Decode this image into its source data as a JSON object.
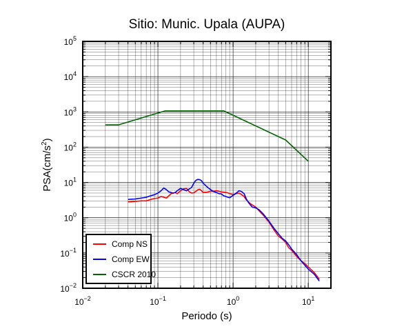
{
  "chart_data": {
    "type": "line",
    "title": "Sitio: Munic. Upala (AUPA)",
    "xlabel": "Periodo (s)",
    "ylabel": {
      "base": "PSA(cm/s",
      "sup": "2",
      "end": ")"
    },
    "x_scale": "log",
    "y_scale": "log",
    "xlim": [
      0.01,
      20
    ],
    "ylim": [
      0.01,
      100000
    ],
    "grid": true,
    "legend_position": "bottom-left",
    "x_ticks": [
      {
        "value": 0.01,
        "base": "10",
        "exp": "−2"
      },
      {
        "value": 0.1,
        "base": "10",
        "exp": "−1"
      },
      {
        "value": 1,
        "base": "10",
        "exp": "0"
      },
      {
        "value": 10,
        "base": "10",
        "exp": "1"
      }
    ],
    "y_ticks": [
      {
        "value": 0.01,
        "base": "10",
        "exp": "−2"
      },
      {
        "value": 0.1,
        "base": "10",
        "exp": "−1"
      },
      {
        "value": 1,
        "base": "10",
        "exp": "0"
      },
      {
        "value": 10,
        "base": "10",
        "exp": "1"
      },
      {
        "value": 100,
        "base": "10",
        "exp": "2"
      },
      {
        "value": 1000,
        "base": "10",
        "exp": "3"
      },
      {
        "value": 10000,
        "base": "10",
        "exp": "4"
      },
      {
        "value": 100000,
        "base": "10",
        "exp": "5"
      }
    ],
    "series": [
      {
        "name": "Comp NS",
        "color": "#ff0000",
        "x": [
          0.04,
          0.05,
          0.06,
          0.07,
          0.08,
          0.09,
          0.1,
          0.11,
          0.12,
          0.13,
          0.14,
          0.15,
          0.16,
          0.17,
          0.18,
          0.2,
          0.22,
          0.24,
          0.26,
          0.28,
          0.3,
          0.32,
          0.34,
          0.36,
          0.38,
          0.4,
          0.45,
          0.5,
          0.55,
          0.6,
          0.65,
          0.7,
          0.75,
          0.8,
          0.85,
          0.9,
          0.95,
          1.0,
          1.1,
          1.2,
          1.3,
          1.4,
          1.5,
          1.6,
          1.7,
          1.8,
          2.0,
          2.2,
          2.5,
          3.0,
          3.5,
          4.0,
          4.5,
          5.0,
          5.5,
          6.0,
          7.0,
          8.0,
          9.0,
          10.0,
          12.0,
          14.0
        ],
        "y": [
          2.8,
          2.9,
          3.0,
          3.0,
          3.3,
          3.5,
          3.6,
          4.0,
          3.8,
          3.6,
          4.2,
          4.8,
          5.0,
          5.2,
          4.8,
          5.8,
          6.6,
          6.8,
          5.5,
          5.0,
          5.1,
          5.6,
          6.2,
          6.4,
          5.8,
          5.2,
          5.3,
          5.6,
          5.6,
          5.8,
          5.6,
          5.4,
          5.3,
          5.2,
          5.1,
          4.8,
          4.7,
          4.5,
          4.8,
          5.0,
          4.5,
          4.0,
          3.2,
          2.8,
          2.5,
          2.3,
          2.0,
          1.6,
          1.2,
          0.75,
          0.45,
          0.3,
          0.25,
          0.2,
          0.14,
          0.12,
          0.08,
          0.06,
          0.05,
          0.04,
          0.028,
          0.018
        ]
      },
      {
        "name": "Comp EW",
        "color": "#0000ff",
        "x": [
          0.04,
          0.05,
          0.06,
          0.07,
          0.08,
          0.09,
          0.1,
          0.11,
          0.12,
          0.13,
          0.14,
          0.15,
          0.16,
          0.17,
          0.18,
          0.2,
          0.22,
          0.24,
          0.26,
          0.28,
          0.3,
          0.32,
          0.34,
          0.36,
          0.38,
          0.4,
          0.45,
          0.5,
          0.55,
          0.6,
          0.65,
          0.7,
          0.75,
          0.8,
          0.85,
          0.9,
          0.95,
          1.0,
          1.1,
          1.2,
          1.3,
          1.4,
          1.5,
          1.6,
          1.7,
          1.8,
          2.0,
          2.2,
          2.5,
          3.0,
          3.5,
          4.0,
          4.5,
          5.0,
          5.5,
          6.0,
          7.0,
          8.0,
          9.0,
          10.0,
          12.0,
          14.0
        ],
        "y": [
          3.3,
          3.4,
          3.6,
          3.8,
          4.2,
          4.5,
          5.0,
          5.8,
          7.0,
          6.2,
          5.4,
          5.2,
          5.0,
          5.2,
          5.8,
          6.8,
          6.2,
          5.8,
          6.5,
          7.2,
          9.5,
          11.5,
          12.2,
          12.0,
          11.2,
          9.5,
          7.5,
          6.3,
          5.5,
          5.2,
          4.8,
          4.7,
          4.2,
          4.0,
          3.8,
          3.7,
          4.0,
          4.3,
          5.0,
          5.8,
          5.5,
          4.8,
          3.4,
          2.7,
          2.3,
          2.0,
          1.9,
          1.7,
          1.3,
          0.8,
          0.5,
          0.35,
          0.26,
          0.22,
          0.17,
          0.13,
          0.09,
          0.06,
          0.045,
          0.035,
          0.025,
          0.016
        ]
      },
      {
        "name": "CSCR 2010",
        "color": "#006400",
        "x": [
          0.02,
          0.03,
          0.125,
          0.75,
          5.0,
          10.0
        ],
        "y": [
          430,
          430,
          1070,
          1070,
          160,
          40
        ]
      }
    ]
  }
}
